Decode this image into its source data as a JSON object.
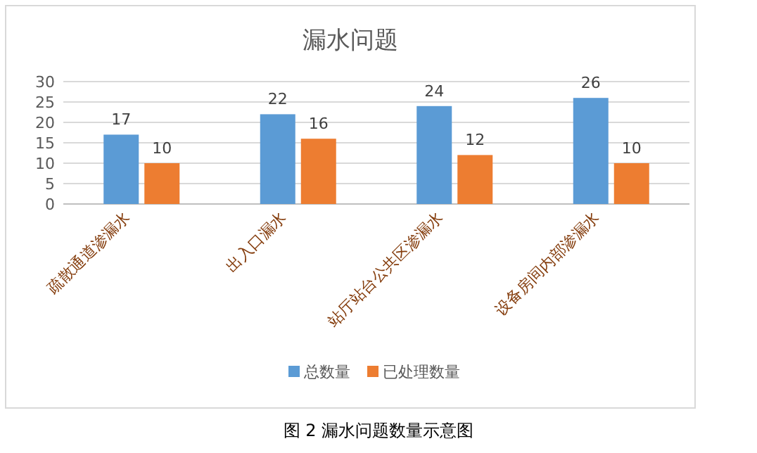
{
  "chart_data": {
    "type": "bar",
    "title": "漏水问题",
    "categories": [
      "疏散通道渗漏水",
      "出入口漏水",
      "站厅站台公共区渗漏水",
      "设备房间内部渗漏水"
    ],
    "series": [
      {
        "name": "总数量",
        "color": "#5b9bd5",
        "values": [
          17,
          22,
          24,
          26
        ]
      },
      {
        "name": "已处理数量",
        "color": "#ed7d31",
        "values": [
          10,
          16,
          12,
          10
        ]
      }
    ],
    "ylim": [
      0,
      30
    ],
    "yticks": [
      0,
      5,
      10,
      15,
      20,
      25,
      30
    ],
    "grid": "y",
    "legend": "bottom",
    "data_labels": true,
    "annotations": [
      "图 2  漏水问题数量示意图"
    ]
  }
}
